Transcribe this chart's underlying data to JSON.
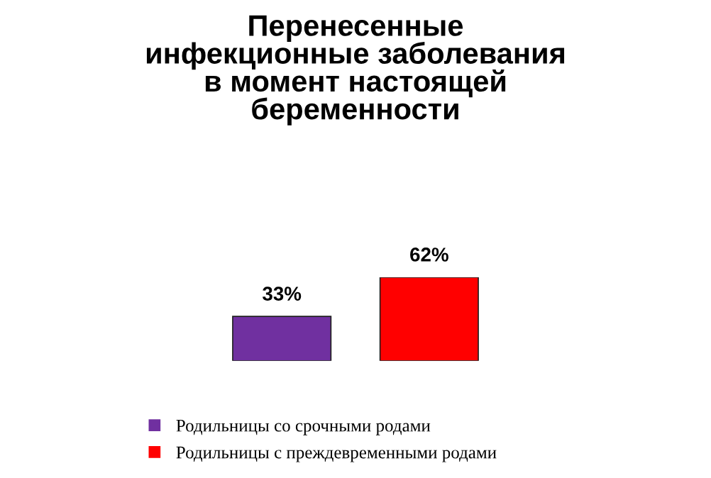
{
  "chart_data": {
    "type": "bar",
    "title": "Перенесенные\nинфекционные заболевания\nв момент настоящей\nбеременности",
    "categories": [
      null
    ],
    "series": [
      {
        "name": "Родильницы со срочными родами",
        "color": "#7030a0",
        "values": [
          33
        ],
        "value_labels": [
          "33%"
        ]
      },
      {
        "name": "Родильницы с преждевременными родами",
        "color": "#ff0000",
        "values": [
          62
        ],
        "value_labels": [
          "62%"
        ]
      }
    ],
    "legend": "bottom left",
    "grid": false
  }
}
